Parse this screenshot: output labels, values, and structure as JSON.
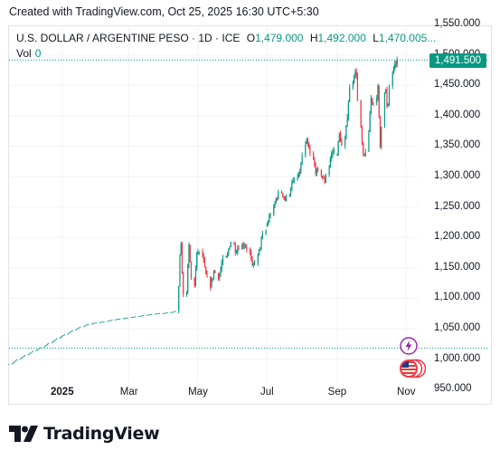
{
  "caption": "Created with TradingView.com, Oct 25, 2025 16:30 UTC+5:30",
  "legend": {
    "symbol": "U.S. DOLLAR / ARGENTINE PESO · 1D · ICE",
    "open_key": "O",
    "open": "1,479.000",
    "high_key": "H",
    "high": "1,492.000",
    "low_key": "L",
    "low": "1,470.005...",
    "vol_key": "Vol",
    "vol": "0"
  },
  "last_price_label": "1,491.500",
  "colors": {
    "up": "#089981",
    "down": "#f23645",
    "grid": "#f0f3fa",
    "text": "#131722"
  },
  "icons": [
    "lightning-icon",
    "us-flag-icon"
  ],
  "brand": "TradingView",
  "chart_data": {
    "type": "candlestick",
    "title": "U.S. DOLLAR / ARGENTINE PESO",
    "interval": "1D",
    "exchange": "ICE",
    "xlabel": "",
    "ylabel": "",
    "ylim": [
      925,
      1550
    ],
    "yticks": [
      "1,550.000",
      "1,500.000",
      "1,450.000",
      "1,400.000",
      "1,350.000",
      "1,300.000",
      "1,250.000",
      "1,200.000",
      "1,150.000",
      "1,100.000",
      "1,050.000",
      "1,000.000",
      "950.000"
    ],
    "ytick_values": [
      1550,
      1500,
      1450,
      1400,
      1350,
      1300,
      1250,
      1200,
      1150,
      1100,
      1050,
      1000,
      950
    ],
    "xticks": [
      "2025",
      "Mar",
      "May",
      "Jul",
      "Sep",
      "Nov"
    ],
    "xtick_dates": [
      "2025-01-01",
      "2025-03-01",
      "2025-05-01",
      "2025-07-01",
      "2025-09-01",
      "2025-11-01"
    ],
    "xlim": [
      "2024-11-15",
      "2025-11-12"
    ],
    "grid": true,
    "reference_lines": [
      1491.5,
      1018
    ],
    "series": [
      {
        "segments": [
          {
            "from": "2024-11-15",
            "to": "2025-04-10",
            "values": [
              992,
              1000,
              1008,
              1015,
              1022,
              1030,
              1038,
              1045,
              1052,
              1057,
              1060,
              1062,
              1065,
              1067,
              1069,
              1071,
              1073,
              1075,
              1076,
              1078
            ]
          },
          {
            "from": "2025-04-11",
            "to": "2025-06-30",
            "values": [
              1075,
              1198,
              1090,
              1185,
              1115,
              1180,
              1170,
              1140,
              1120,
              1145,
              1135,
              1160,
              1170,
              1195,
              1178,
              1185,
              1190,
              1182,
              1150,
              1165,
              1190,
              1210
            ]
          },
          {
            "from": "2025-07-01",
            "to": "2025-08-31",
            "values": [
              1220,
              1240,
              1265,
              1275,
              1260,
              1285,
              1295,
              1310,
              1360,
              1340,
              1310,
              1305,
              1290,
              1330,
              1345
            ]
          },
          {
            "from": "2025-09-01",
            "to": "2025-10-24",
            "values": [
              1340,
              1372,
              1345,
              1390,
              1440,
              1470,
              1470,
              1370,
              1325,
              1350,
              1430,
              1420,
              1445,
              1340,
              1460,
              1400,
              1470,
              1480,
              1491.5
            ]
          }
        ]
      }
    ]
  }
}
